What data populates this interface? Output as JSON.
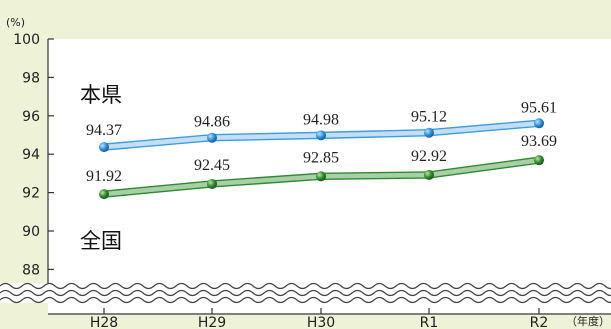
{
  "chart_data": {
    "type": "line",
    "y_unit": "(%)",
    "x_unit": "（年度）",
    "categories": [
      "H28",
      "H29",
      "H30",
      "R1",
      "R2"
    ],
    "series": [
      {
        "name": "本県",
        "values": [
          94.37,
          94.86,
          94.98,
          95.12,
          95.61
        ],
        "labels": [
          "94.37",
          "94.86",
          "94.98",
          "95.12",
          "95.61"
        ],
        "color": "#3a9ee3",
        "band_color": "#c6def3"
      },
      {
        "name": "全国",
        "values": [
          91.92,
          92.45,
          92.85,
          92.92,
          93.69
        ],
        "labels": [
          "91.92",
          "92.45",
          "92.85",
          "92.92",
          "93.69"
        ],
        "color": "#2f8a2f",
        "band_color": "#a8cfa8"
      }
    ],
    "ylim": [
      88,
      100
    ],
    "yticks": [
      100,
      98,
      96,
      94,
      92,
      90,
      88
    ],
    "axis_break": true,
    "grid": false
  }
}
